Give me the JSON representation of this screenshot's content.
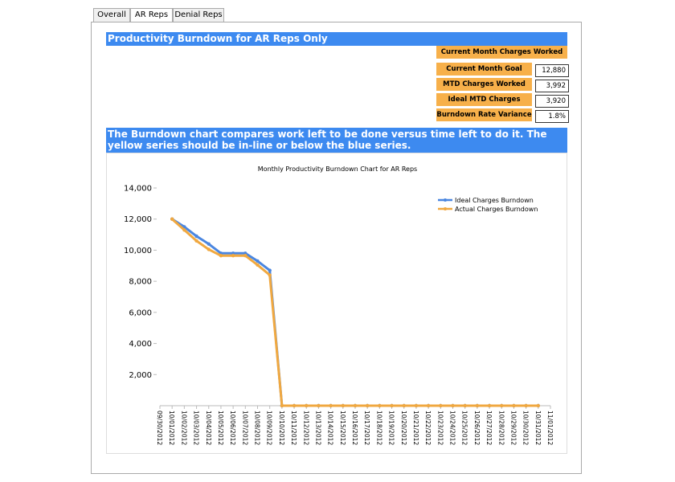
{
  "tabs": [
    "Overall",
    "AR Reps",
    "Denial Reps"
  ],
  "header": {
    "title": "Productivity Burndown for AR Reps Only"
  },
  "kpi": {
    "heading": "Current Month Charges Worked",
    "rows": [
      {
        "label": "Current Month Goal",
        "value": "12,880"
      },
      {
        "label": "MTD Charges Worked",
        "value": "3,992"
      },
      {
        "label": "Ideal MTD Charges Worked",
        "value": "3,920"
      },
      {
        "label": "Burndown Rate Variance",
        "value": "1.8%"
      }
    ]
  },
  "description": "The Burndown chart compares work left to be done versus time left to do it. The yellow series should be in-line or below the blue series.",
  "chart_data": {
    "type": "line",
    "title": "Monthly Productivity Burndown Chart for AR Reps",
    "categories": [
      "09/30/2012",
      "10/01/2012",
      "10/02/2012",
      "10/03/2012",
      "10/04/2012",
      "10/05/2012",
      "10/06/2012",
      "10/07/2012",
      "10/08/2012",
      "10/09/2012",
      "10/10/2012",
      "10/11/2012",
      "10/12/2012",
      "10/13/2012",
      "10/14/2012",
      "10/15/2012",
      "10/16/2012",
      "10/17/2012",
      "10/18/2012",
      "10/19/2012",
      "10/20/2012",
      "10/21/2012",
      "10/22/2012",
      "10/23/2012",
      "10/24/2012",
      "10/25/2012",
      "10/26/2012",
      "10/27/2012",
      "10/28/2012",
      "10/29/2012",
      "10/30/2012",
      "10/31/2012",
      "11/01/2012"
    ],
    "series": [
      {
        "name": "Ideal Charges Burndown",
        "color": "#4a86e0",
        "values": [
          null,
          12000,
          11500,
          10900,
          10400,
          9800,
          9800,
          9800,
          9300,
          8700,
          0,
          0,
          0,
          0,
          0,
          0,
          0,
          0,
          0,
          0,
          0,
          0,
          0,
          0,
          0,
          0,
          0,
          0,
          0,
          0,
          0,
          0,
          null
        ]
      },
      {
        "name": "Actual Charges Burndown",
        "color": "#f0a840",
        "values": [
          null,
          12000,
          11300,
          10600,
          10050,
          9650,
          9650,
          9650,
          9050,
          8400,
          0,
          0,
          0,
          0,
          0,
          0,
          0,
          0,
          0,
          0,
          0,
          0,
          0,
          0,
          0,
          0,
          0,
          0,
          0,
          0,
          0,
          0,
          null
        ]
      }
    ],
    "ylim": [
      0,
      14000
    ],
    "yticks": [
      {
        "value": 2000,
        "label": "2,000"
      },
      {
        "value": 4000,
        "label": "4,000"
      },
      {
        "value": 6000,
        "label": "6,000"
      },
      {
        "value": 8000,
        "label": "8,000"
      },
      {
        "value": 10000,
        "label": "10,000"
      },
      {
        "value": 12000,
        "label": "12,000"
      },
      {
        "value": 14000,
        "label": "14,000"
      }
    ],
    "legend": "upper right"
  }
}
